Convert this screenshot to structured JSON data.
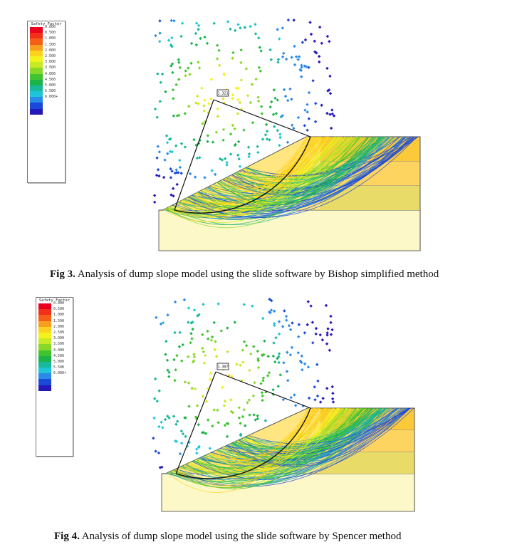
{
  "figures": [
    {
      "id": "fig3",
      "caption_label": "Fig 3.",
      "caption_text": "  Analysis of dump slope model using the slide software by Bishop simplified method",
      "min_fs_label": "1.321",
      "legend": {
        "title": "Safety Factor",
        "labels": [
          "0.000",
          "0.500",
          "1.000",
          "1.500",
          "2.000",
          "2.500",
          "3.000",
          "3.500",
          "4.000",
          "4.500",
          "5.000",
          "5.500",
          "6.000+"
        ]
      }
    },
    {
      "id": "fig4",
      "caption_label": "Fig 4.",
      "caption_text": "  Analysis of dump slope model using the slide software by Spencer method",
      "min_fs_label": "1.307",
      "legend": {
        "title": "Safety Factor",
        "labels": [
          "0.000",
          "0.500",
          "1.000",
          "1.500",
          "2.000",
          "2.500",
          "3.000",
          "3.500",
          "4.000",
          "4.500",
          "5.000",
          "5.500",
          "6.000+"
        ]
      }
    }
  ],
  "legend_colors": [
    "#e8001c",
    "#f2301a",
    "#f56018",
    "#f7a020",
    "#fbd21f",
    "#f2f21c",
    "#c8ea24",
    "#88d82a",
    "#40c430",
    "#1cb44a",
    "#18b89a",
    "#1fc4d8",
    "#2a8ae8",
    "#1a48d8",
    "#2418b8"
  ],
  "layer_colors": {
    "foundation": "#fdf8c8",
    "dump_green": "#cde6c8",
    "dump_peach": "#fcd8b8",
    "dump_orange": "#f9c060",
    "surface_fill": "#ffd21a"
  }
}
